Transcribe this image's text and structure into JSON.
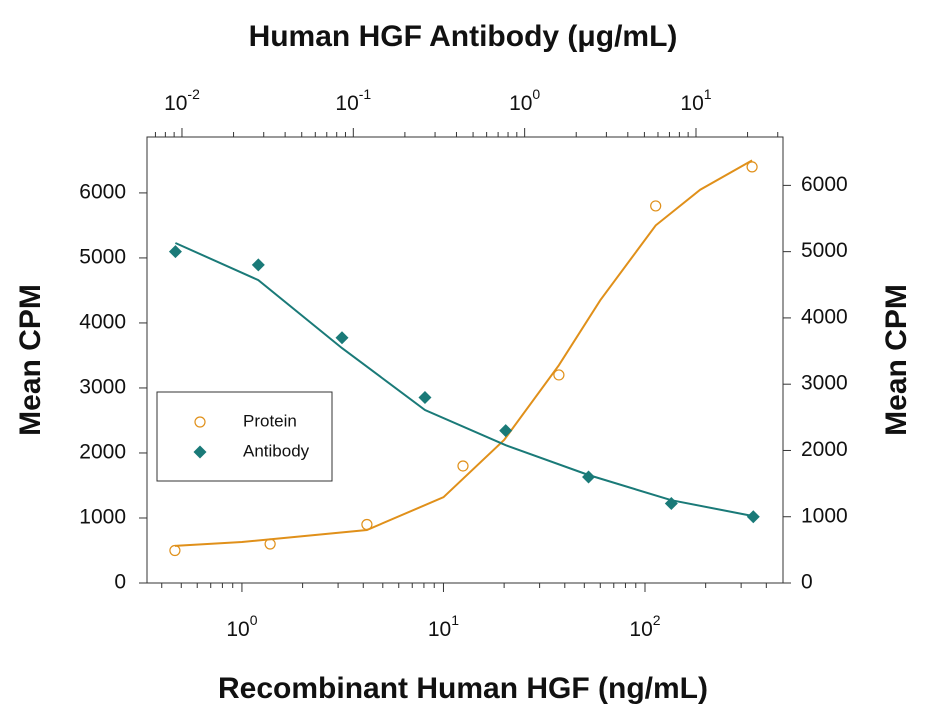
{
  "chart_data": {
    "type": "scatter",
    "title": "Human HGF Antibody (μg/mL)",
    "xlabel": "Recombinant Human HGF (ng/mL)",
    "ylabel": "Mean CPM",
    "y2label": "Mean CPM",
    "xscale": "log",
    "x2scale": "log",
    "xlim": [
      0.338,
      484
    ],
    "xticks": [
      {
        "value": 1,
        "label": "10",
        "exponent": "0"
      },
      {
        "value": 10,
        "label": "10",
        "exponent": "1"
      },
      {
        "value": 100,
        "label": "10",
        "exponent": "2"
      }
    ],
    "x2lim": [
      0.00625,
      32.2
    ],
    "x2ticks": [
      {
        "value": 0.01,
        "label": "10",
        "exponent": "-2"
      },
      {
        "value": 0.1,
        "label": "10",
        "exponent": "-1"
      },
      {
        "value": 1,
        "label": "10",
        "exponent": "0"
      },
      {
        "value": 10,
        "label": "10",
        "exponent": "1"
      }
    ],
    "ylim": [
      0,
      6860
    ],
    "yticks": [
      0,
      1000,
      2000,
      3000,
      4000,
      5000,
      6000
    ],
    "y2lim": [
      0,
      6730
    ],
    "y2ticks": [
      0,
      1000,
      2000,
      3000,
      4000,
      5000,
      6000
    ],
    "legend": "left",
    "series": [
      {
        "name": "Protein",
        "color": "#e0901a",
        "marker": "circle",
        "axis": "y",
        "xaxis": "x",
        "x": [
          0.465,
          1.38,
          4.17,
          12.5,
          37.4,
          113,
          340
        ],
        "values": [
          500,
          600,
          900,
          1800,
          3200,
          5800,
          6400
        ],
        "fit": {
          "x": [
            0.465,
            1,
            4.17,
            10,
            20,
            37.4,
            60,
            113,
            188,
            340
          ],
          "values": [
            570,
            630,
            815,
            1320,
            2200,
            3350,
            4350,
            5500,
            6050,
            6500
          ]
        }
      },
      {
        "name": "Antibody",
        "color": "#1a7a78",
        "marker": "diamond",
        "axis": "y2",
        "xaxis": "x2",
        "x": [
          0.00916,
          0.0279,
          0.0859,
          0.262,
          0.775,
          2.36,
          7.18,
          21.6
        ],
        "values": [
          5000,
          4800,
          3700,
          2800,
          2300,
          1600,
          1200,
          1000
        ],
        "fit": {
          "x": [
            0.00916,
            0.0279,
            0.0859,
            0.262,
            0.775,
            2.36,
            7.18,
            21.6
          ],
          "values": [
            5130,
            4570,
            3545,
            2610,
            2080,
            1630,
            1250,
            1010
          ]
        }
      }
    ]
  }
}
